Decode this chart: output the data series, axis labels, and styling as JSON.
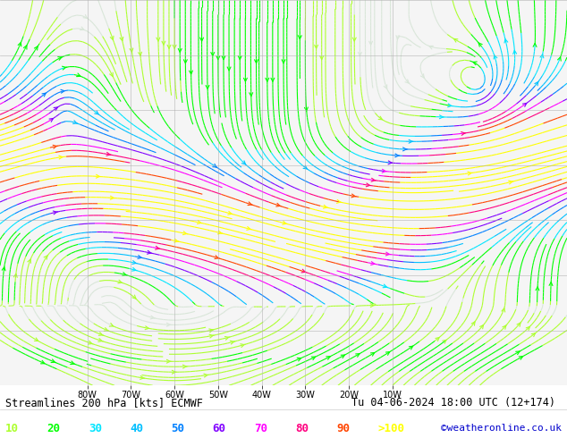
{
  "title_text": "Streamlines 200 hPa [kts] ECMWF",
  "date_text": "Tu 04-06-2024 18:00 UTC (12+174)",
  "credit_text": "©weatheronline.co.uk",
  "legend_values": [
    10,
    20,
    30,
    40,
    50,
    60,
    70,
    80,
    90
  ],
  "legend_label_gt": ">100",
  "legend_colors": [
    "#adff2f",
    "#00ff00",
    "#00e5ff",
    "#00bfff",
    "#0080ff",
    "#8000ff",
    "#ff00ff",
    "#ff0080",
    "#ff4500"
  ],
  "legend_gt_color": "#ffff00",
  "background_color": "#f0f0f0",
  "map_background": "#f5f5f5",
  "grid_color": "#aaaaaa",
  "text_color": "#000000",
  "bottom_bar_color": "#ffffff",
  "figsize": [
    6.34,
    4.9
  ],
  "dpi": 100,
  "lon_min": -100,
  "lon_max": 30,
  "lat_min": 10,
  "lat_max": 80,
  "lon_ticks": [
    -80,
    -70,
    -60,
    -50,
    -40,
    -30,
    -20,
    -10
  ],
  "lon_labels": [
    "80W",
    "70W",
    "60W",
    "50W",
    "40W",
    "30W",
    "20W",
    "10W"
  ],
  "lat_ticks": []
}
